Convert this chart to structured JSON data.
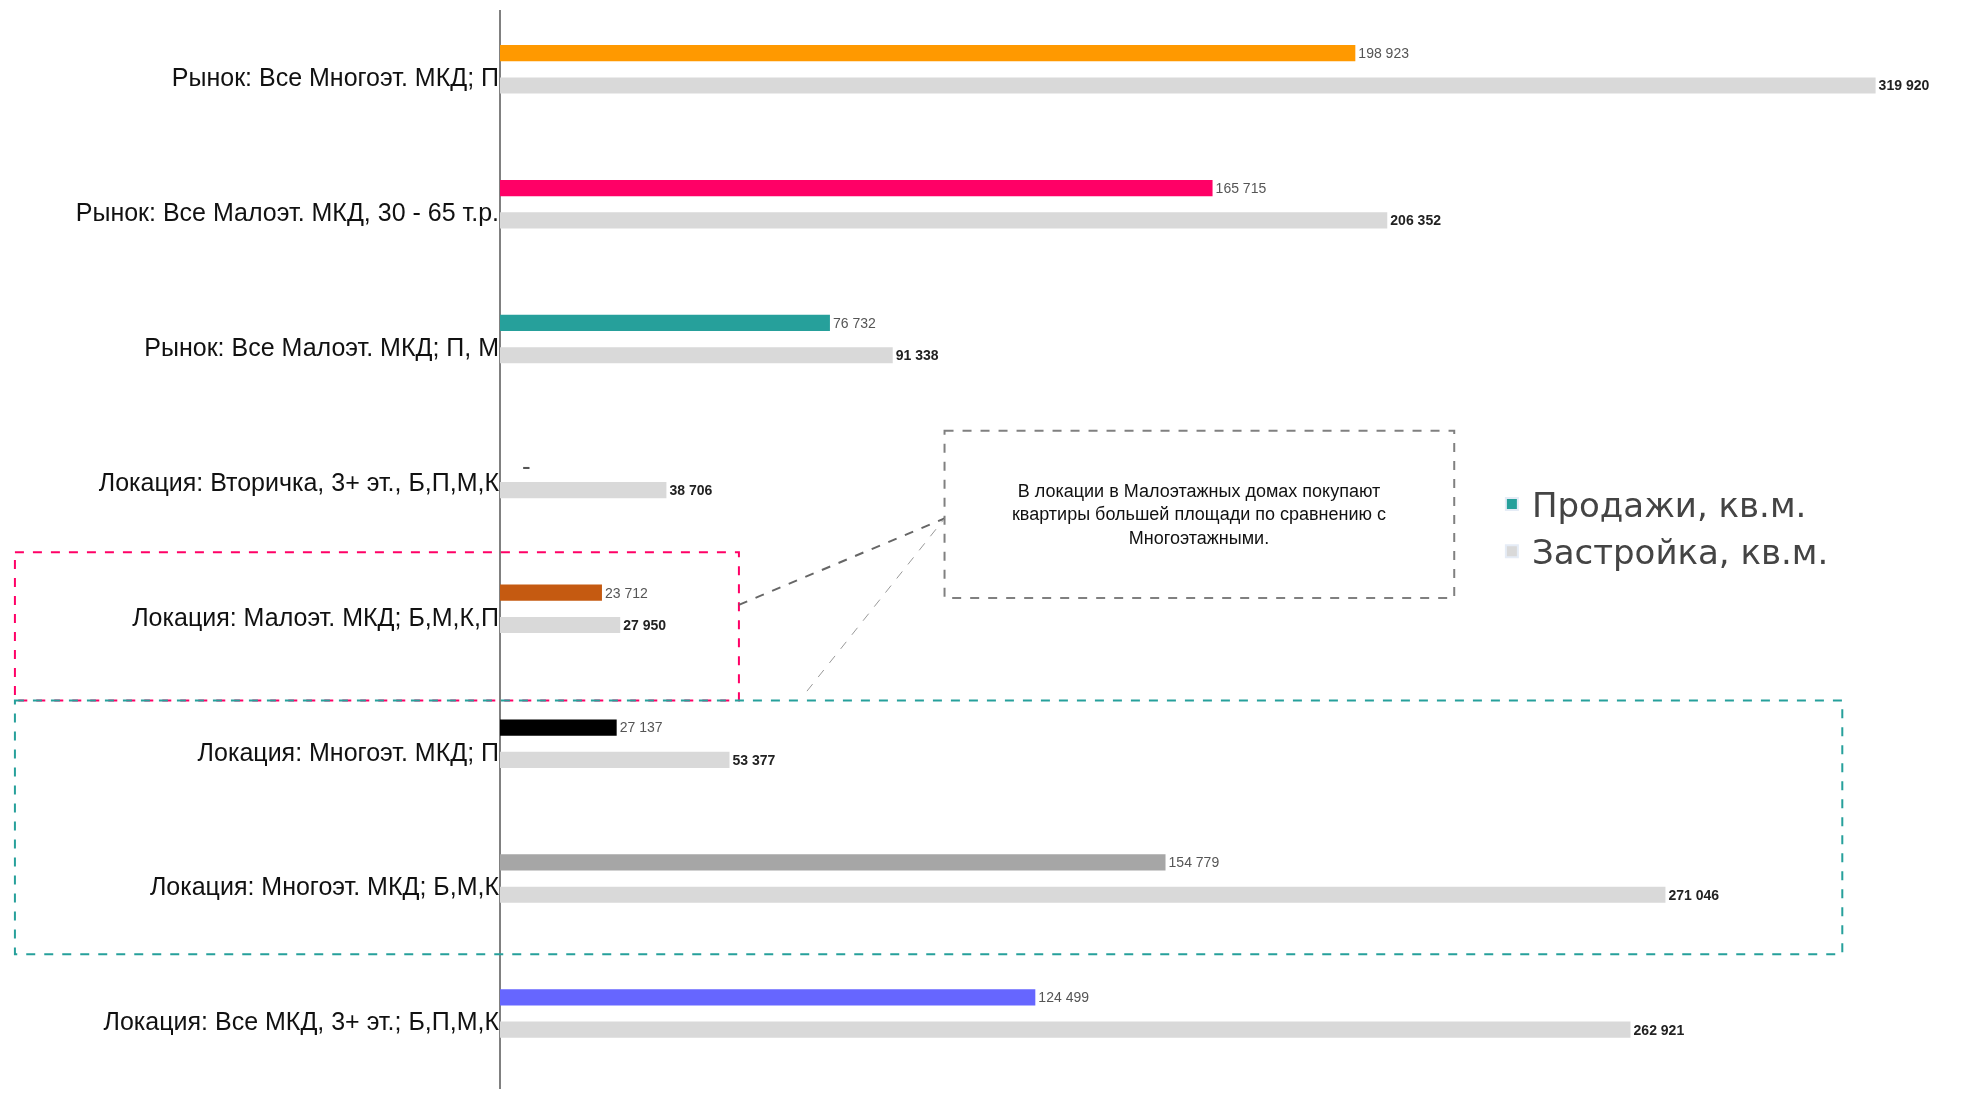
{
  "chart_data": {
    "type": "bar",
    "orientation": "horizontal",
    "categories": [
      "Рынок: Все Многоэт. МКД; П",
      "Рынок: Все Малоэт. МКД, 30 - 65 т.р.",
      "Рынок: Все Малоэт. МКД; П, М",
      "Локация: Вторичка, 3+ эт., Б,П,М,К",
      "Локация: Малоэт. МКД; Б,М,К,П",
      "Локация: Многоэт. МКД; П",
      "Локация: Многоэт. МКД; Б,М,К",
      "Локация: Все МКД, 3+ эт.; Б,П,М,К"
    ],
    "series": [
      {
        "name": "Продажи, кв.м.",
        "color": "#26a09b",
        "colors": [
          "#ff9900",
          "#ff0066",
          "#26a09b",
          "#26a09b",
          "#c55a11",
          "#000000",
          "#a6a6a6",
          "#6666ff"
        ],
        "values": [
          198923,
          165715,
          76732,
          null,
          23712,
          27137,
          154779,
          124499
        ],
        "value_labels": [
          "198 923",
          "165 715",
          "76 732",
          "-",
          "23 712",
          "27 137",
          "154 779",
          "124 499"
        ]
      },
      {
        "name": "Застройка, кв.м.",
        "color": "#d9d9d9",
        "values": [
          319920,
          206352,
          91338,
          38706,
          27950,
          53377,
          271046,
          262921
        ],
        "value_labels": [
          "319 920",
          "206 352",
          "91 338",
          "38 706",
          "27 950",
          "53 377",
          "271 046",
          "262 921"
        ]
      }
    ],
    "annotations": [
      "В локации в Малоэтажных домах покупают квартиры большей площади по сравнению с Многоэтажными."
    ],
    "legend": "right"
  }
}
